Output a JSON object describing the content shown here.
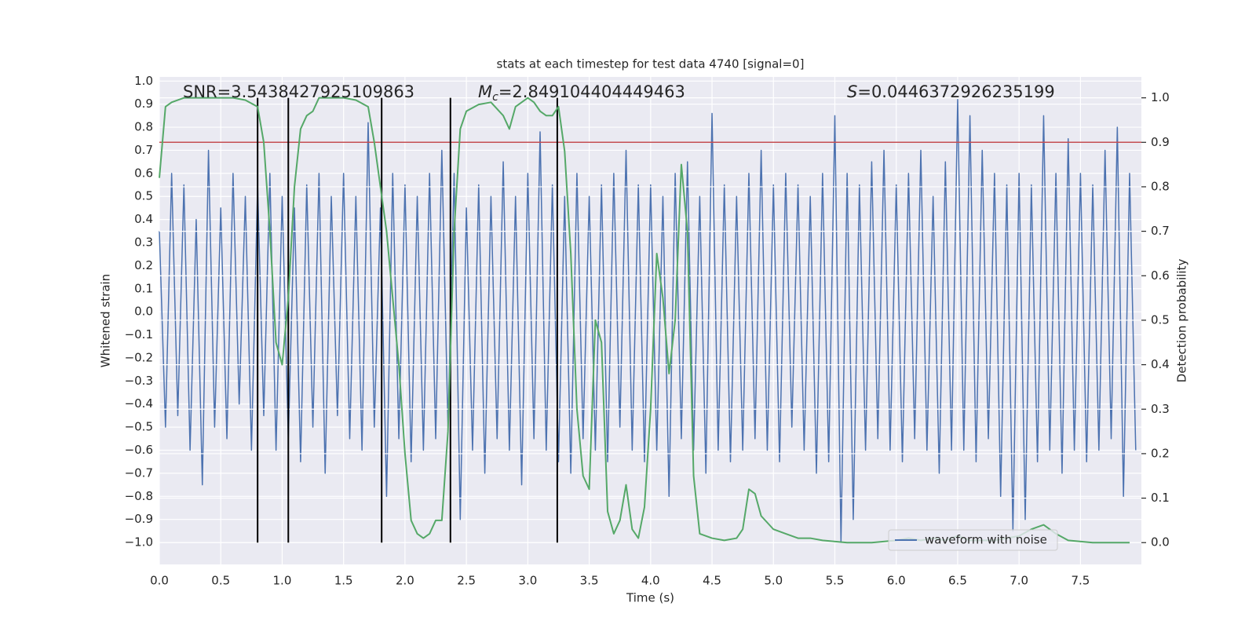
{
  "chart_data": {
    "type": "line",
    "title": "stats at each timestep for test data 4740 [signal=0]",
    "xlabel": "Time (s)",
    "ylabel": "Whitened strain",
    "y2label": "Detection probability",
    "annotations": [
      {
        "text": "SNR=3.5438427925109863"
      },
      {
        "symbol": "M",
        "subscript": "c",
        "text": "=2.849104404449463"
      },
      {
        "symbol": "S",
        "text": "=0.0446372926235199"
      }
    ],
    "xlim": [
      0,
      7.996
    ],
    "ylim": [
      -1.095,
      1.018
    ],
    "y2lim": [
      -0.049,
      1.047
    ],
    "xticks": [
      {
        "value": 0,
        "label": "0.0"
      },
      {
        "value": 0.5,
        "label": "0.5"
      },
      {
        "value": 1,
        "label": "1.0"
      },
      {
        "value": 1.5,
        "label": "1.5"
      },
      {
        "value": 2,
        "label": "2.0"
      },
      {
        "value": 2.5,
        "label": "2.5"
      },
      {
        "value": 3,
        "label": "3.0"
      },
      {
        "value": 3.5,
        "label": "3.5"
      },
      {
        "value": 4,
        "label": "4.0"
      },
      {
        "value": 4.5,
        "label": "4.5"
      },
      {
        "value": 5,
        "label": "5.0"
      },
      {
        "value": 5.5,
        "label": "5.5"
      },
      {
        "value": 6,
        "label": "6.0"
      },
      {
        "value": 6.5,
        "label": "6.5"
      },
      {
        "value": 7,
        "label": "7.0"
      },
      {
        "value": 7.5,
        "label": "7.5"
      }
    ],
    "yticks": [
      {
        "value": -1,
        "label": "−1.0"
      },
      {
        "value": -0.9,
        "label": "−0.9"
      },
      {
        "value": -0.8,
        "label": "−0.8"
      },
      {
        "value": -0.7,
        "label": "−0.7"
      },
      {
        "value": -0.6,
        "label": "−0.6"
      },
      {
        "value": -0.5,
        "label": "−0.5"
      },
      {
        "value": -0.4,
        "label": "−0.4"
      },
      {
        "value": -0.3,
        "label": "−0.3"
      },
      {
        "value": -0.2,
        "label": "−0.2"
      },
      {
        "value": -0.1,
        "label": "−0.1"
      },
      {
        "value": 0,
        "label": "0.0"
      },
      {
        "value": 0.1,
        "label": "0.1"
      },
      {
        "value": 0.2,
        "label": "0.2"
      },
      {
        "value": 0.3,
        "label": "0.3"
      },
      {
        "value": 0.4,
        "label": "0.4"
      },
      {
        "value": 0.5,
        "label": "0.5"
      },
      {
        "value": 0.6,
        "label": "0.6"
      },
      {
        "value": 0.7,
        "label": "0.7"
      },
      {
        "value": 0.8,
        "label": "0.8"
      },
      {
        "value": 0.9,
        "label": "0.9"
      },
      {
        "value": 1,
        "label": "1.0"
      }
    ],
    "y2ticks": [
      {
        "value": 0,
        "label": "0.0"
      },
      {
        "value": 0.1,
        "label": "0.1"
      },
      {
        "value": 0.2,
        "label": "0.2"
      },
      {
        "value": 0.3,
        "label": "0.3"
      },
      {
        "value": 0.4,
        "label": "0.4"
      },
      {
        "value": 0.5,
        "label": "0.5"
      },
      {
        "value": 0.6,
        "label": "0.6"
      },
      {
        "value": 0.7,
        "label": "0.7"
      },
      {
        "value": 0.8,
        "label": "0.8"
      },
      {
        "value": 0.9,
        "label": "0.9"
      },
      {
        "value": 1,
        "label": "1.0"
      }
    ],
    "grid": true,
    "legend": "lower right",
    "series": [
      {
        "name": "waveform with noise",
        "color": "#4c72b0",
        "x": [
          0,
          0.05,
          0.1,
          0.15,
          0.2,
          0.25,
          0.3,
          0.35,
          0.4,
          0.45,
          0.5,
          0.55,
          0.6,
          0.65,
          0.7,
          0.75,
          0.8,
          0.85,
          0.9,
          0.95,
          1,
          1.05,
          1.1,
          1.15,
          1.2,
          1.25,
          1.3,
          1.35,
          1.4,
          1.45,
          1.5,
          1.55,
          1.6,
          1.65,
          1.7,
          1.75,
          1.8,
          1.85,
          1.9,
          1.95,
          2,
          2.05,
          2.1,
          2.15,
          2.2,
          2.25,
          2.3,
          2.35,
          2.4,
          2.45,
          2.5,
          2.55,
          2.6,
          2.65,
          2.7,
          2.75,
          2.8,
          2.85,
          2.9,
          2.95,
          3,
          3.05,
          3.1,
          3.15,
          3.2,
          3.25,
          3.3,
          3.35,
          3.4,
          3.45,
          3.5,
          3.55,
          3.6,
          3.65,
          3.7,
          3.75,
          3.8,
          3.85,
          3.9,
          3.95,
          4,
          4.05,
          4.1,
          4.15,
          4.2,
          4.25,
          4.3,
          4.35,
          4.4,
          4.45,
          4.5,
          4.55,
          4.6,
          4.65,
          4.7,
          4.75,
          4.8,
          4.85,
          4.9,
          4.95,
          5,
          5.05,
          5.1,
          5.15,
          5.2,
          5.25,
          5.3,
          5.35,
          5.4,
          5.45,
          5.5,
          5.55,
          5.6,
          5.65,
          5.7,
          5.75,
          5.8,
          5.85,
          5.9,
          5.95,
          6,
          6.05,
          6.1,
          6.15,
          6.2,
          6.25,
          6.3,
          6.35,
          6.4,
          6.45,
          6.5,
          6.55,
          6.6,
          6.65,
          6.7,
          6.75,
          6.8,
          6.85,
          6.9,
          6.95,
          7,
          7.05,
          7.1,
          7.15,
          7.2,
          7.25,
          7.3,
          7.35,
          7.4,
          7.45,
          7.5,
          7.55,
          7.6,
          7.65,
          7.7,
          7.75,
          7.8,
          7.85,
          7.9,
          7.95
        ],
        "values": [
          0.35,
          -0.5,
          0.6,
          -0.45,
          0.55,
          -0.6,
          0.4,
          -0.75,
          0.7,
          -0.5,
          0.45,
          -0.55,
          0.6,
          -0.4,
          0.5,
          -0.6,
          0.55,
          -0.45,
          0.6,
          -0.6,
          0.5,
          -0.55,
          0.45,
          -0.65,
          0.55,
          -0.5,
          0.6,
          -0.7,
          0.5,
          -0.45,
          0.6,
          -0.55,
          0.5,
          -0.6,
          0.82,
          -0.5,
          0.45,
          -0.8,
          0.6,
          -0.55,
          0.55,
          -0.65,
          0.5,
          -0.6,
          0.6,
          -0.55,
          0.7,
          -0.5,
          0.6,
          -0.9,
          0.45,
          -0.6,
          0.55,
          -0.7,
          0.5,
          -0.55,
          0.65,
          -0.6,
          0.5,
          -0.75,
          0.6,
          -0.55,
          0.78,
          -0.6,
          0.55,
          -0.65,
          0.5,
          -0.7,
          0.6,
          -0.55,
          0.5,
          -0.6,
          0.55,
          -0.65,
          0.6,
          -0.5,
          0.7,
          -0.6,
          0.55,
          -0.65,
          0.55,
          -0.6,
          0.5,
          -0.8,
          0.6,
          -0.55,
          0.65,
          -0.6,
          0.5,
          -0.7,
          0.86,
          -0.6,
          0.55,
          -0.65,
          0.5,
          -0.6,
          0.6,
          -0.55,
          0.7,
          -0.6,
          0.55,
          -0.65,
          0.6,
          -0.5,
          0.55,
          -0.6,
          0.5,
          -0.7,
          0.6,
          -0.65,
          0.85,
          -1.0,
          0.6,
          -0.9,
          0.55,
          -0.6,
          0.65,
          -0.55,
          0.7,
          -0.6,
          0.55,
          -0.65,
          0.6,
          -0.55,
          0.7,
          -0.6,
          0.5,
          -0.7,
          0.65,
          -0.6,
          0.92,
          -0.6,
          0.85,
          -0.65,
          0.7,
          -0.55,
          0.6,
          -0.8,
          0.55,
          -0.95,
          0.6,
          -0.9,
          0.55,
          -0.65,
          0.85,
          -0.6,
          0.6,
          -0.7,
          0.75,
          -0.6,
          0.6,
          -0.65,
          0.55,
          -0.6,
          0.7,
          -0.55,
          0.8,
          -0.8,
          0.6,
          -0.6
        ]
      },
      {
        "color": "#55a868",
        "axis": "y2",
        "x": [
          0,
          0.05,
          0.1,
          0.2,
          0.3,
          0.4,
          0.5,
          0.6,
          0.7,
          0.8,
          0.85,
          0.9,
          0.95,
          1,
          1.05,
          1.1,
          1.15,
          1.2,
          1.25,
          1.3,
          1.4,
          1.5,
          1.6,
          1.7,
          1.75,
          1.8,
          1.85,
          1.9,
          1.95,
          2,
          2.05,
          2.1,
          2.15,
          2.2,
          2.25,
          2.3,
          2.35,
          2.4,
          2.45,
          2.5,
          2.6,
          2.7,
          2.8,
          2.85,
          2.9,
          2.95,
          3,
          3.05,
          3.1,
          3.15,
          3.2,
          3.25,
          3.3,
          3.35,
          3.4,
          3.45,
          3.5,
          3.55,
          3.6,
          3.65,
          3.7,
          3.75,
          3.8,
          3.85,
          3.9,
          3.95,
          4,
          4.05,
          4.1,
          4.15,
          4.2,
          4.25,
          4.3,
          4.35,
          4.4,
          4.5,
          4.6,
          4.7,
          4.75,
          4.8,
          4.85,
          4.9,
          5,
          5.1,
          5.2,
          5.3,
          5.4,
          5.6,
          5.8,
          6,
          6.1,
          6.2,
          6.3,
          6.4,
          6.5,
          6.6,
          6.8,
          6.9,
          7,
          7.1,
          7.2,
          7.3,
          7.4,
          7.6,
          7.9
        ],
        "values": [
          0.82,
          0.98,
          0.99,
          1.0,
          1.0,
          1.0,
          1.0,
          1.0,
          0.995,
          0.98,
          0.9,
          0.7,
          0.45,
          0.4,
          0.55,
          0.8,
          0.93,
          0.96,
          0.97,
          1.0,
          1.0,
          1.0,
          0.995,
          0.98,
          0.9,
          0.8,
          0.7,
          0.55,
          0.4,
          0.2,
          0.05,
          0.02,
          0.01,
          0.02,
          0.05,
          0.05,
          0.25,
          0.7,
          0.93,
          0.97,
          0.985,
          0.99,
          0.96,
          0.93,
          0.98,
          0.99,
          1.0,
          0.99,
          0.97,
          0.96,
          0.96,
          0.98,
          0.88,
          0.65,
          0.3,
          0.15,
          0.12,
          0.5,
          0.45,
          0.07,
          0.02,
          0.05,
          0.13,
          0.03,
          0.01,
          0.08,
          0.3,
          0.65,
          0.55,
          0.38,
          0.5,
          0.85,
          0.7,
          0.15,
          0.02,
          0.01,
          0.005,
          0.01,
          0.03,
          0.12,
          0.11,
          0.06,
          0.03,
          0.02,
          0.01,
          0.01,
          0.005,
          0,
          0,
          0.005,
          0.01,
          0.005,
          0.01,
          0.005,
          0.015,
          0.005,
          0.005,
          0.01,
          0.015,
          0.03,
          0.04,
          0.02,
          0.005,
          0,
          0
        ]
      }
    ],
    "hlines": [
      {
        "value": 0.9,
        "axis": "y2",
        "color": "#c44e52"
      }
    ],
    "vlines": {
      "x": [
        0.8,
        1.05,
        1.81,
        2.37,
        3.24
      ],
      "range": [
        0,
        1
      ],
      "axis": "y2",
      "color": "#000000"
    }
  }
}
